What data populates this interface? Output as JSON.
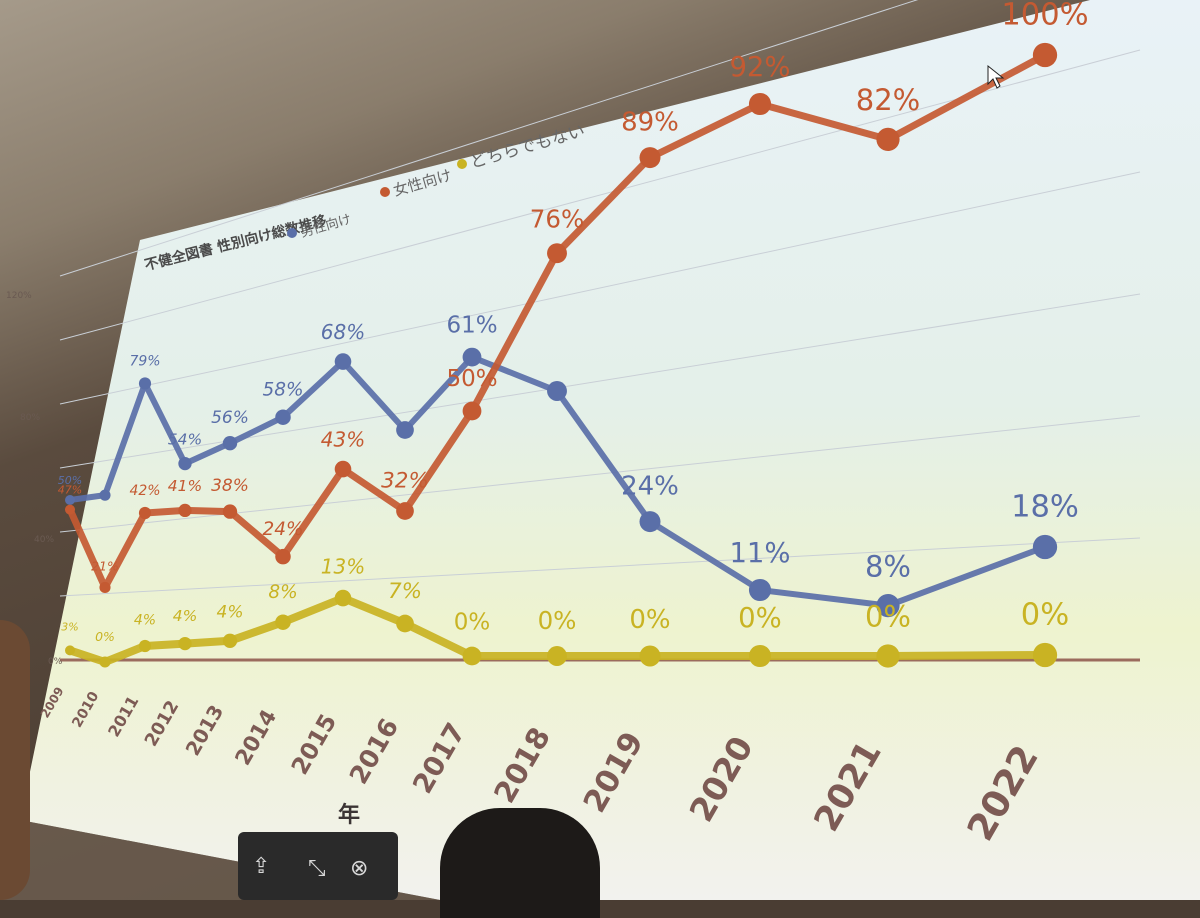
{
  "chart_data": {
    "type": "line",
    "title": "不健全図書 性別向け総数推移",
    "xlabel": "年",
    "ylabel": "",
    "x": [
      "2009",
      "2010",
      "2011",
      "2012",
      "2013",
      "2014",
      "2015",
      "2016",
      "2017",
      "2018",
      "2019",
      "2020",
      "2021",
      "2022"
    ],
    "y_ticks": [
      "0%",
      "40%",
      "80%",
      "120%"
    ],
    "ylim": [
      0,
      120
    ],
    "grid": true,
    "legend_position": "top",
    "series": [
      {
        "name": "男性向け",
        "color": "#5a6fa8",
        "x": [
          "2009",
          "2010",
          "2011",
          "2012",
          "2013",
          "2014",
          "2015",
          "2016",
          "2017",
          "2018",
          "2019",
          "2020",
          "2021",
          "2022"
        ],
        "values": [
          50,
          47,
          79,
          54,
          56,
          58,
          68,
          50,
          61,
          50,
          24,
          11,
          8,
          18
        ],
        "labels": [
          "50%",
          "",
          "79%",
          "54%",
          "56%",
          "58%",
          "68%",
          "",
          "61%",
          "",
          "24%",
          "11%",
          "8%",
          "18%"
        ]
      },
      {
        "name": "女性向け",
        "color": "#c45a32",
        "values": [
          47,
          21,
          42,
          41,
          38,
          24,
          43,
          32,
          50,
          76,
          89,
          92,
          82,
          100
        ],
        "labels": [
          "47%",
          "21%",
          "42%",
          "41%",
          "38%",
          "24%",
          "43%",
          "32%",
          "50%",
          "76%",
          "89%",
          "92%",
          "82%",
          "100%"
        ]
      },
      {
        "name": "どちらでもない",
        "color": "#c9b323",
        "values": [
          3,
          0,
          4,
          4,
          4,
          8,
          13,
          7,
          0,
          0,
          0,
          0,
          0,
          0
        ],
        "labels": [
          "3%",
          "0%",
          "4%",
          "4%",
          "4%",
          "8%",
          "13%",
          "7%",
          "0%",
          "0%",
          "0%",
          "0%",
          "0%",
          "0%"
        ]
      }
    ]
  },
  "overlay": {
    "share_icon": "share-icon",
    "shrink_icon": "shrink-icon",
    "close_icon": "close-icon"
  }
}
